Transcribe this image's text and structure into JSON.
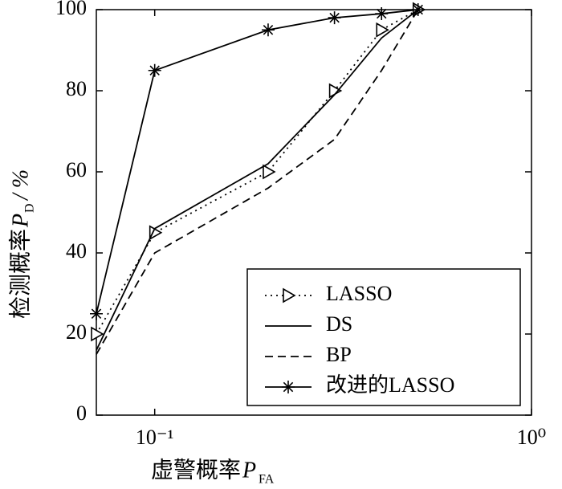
{
  "chart_data": {
    "type": "line",
    "x_label": {
      "text": "虚警概率",
      "var": "P",
      "sub": "FA"
    },
    "y_label": {
      "text": "检测概率",
      "var": "P",
      "sub": "D",
      "unit": "/ %"
    },
    "x": [
      0.07,
      0.1,
      0.2,
      0.3,
      0.4,
      0.5
    ],
    "x_scale": "log",
    "xlim": [
      0.07,
      1
    ],
    "xticks": [
      {
        "value": 0.1,
        "label": "10⁻¹"
      },
      {
        "value": 1,
        "label": "10⁰"
      }
    ],
    "ylim": [
      0,
      100
    ],
    "yticks": [
      0,
      20,
      40,
      60,
      80,
      100
    ],
    "grid": false,
    "legend": "lower right",
    "series": [
      {
        "name": "LASSO",
        "color": "#000000",
        "dash": "dotted",
        "marker": "triangle-right",
        "values": [
          20,
          45,
          60,
          80,
          95,
          100
        ]
      },
      {
        "name": "DS",
        "color": "#000000",
        "dash": "solid",
        "marker": null,
        "values": [
          16,
          46,
          62,
          79,
          93,
          100
        ]
      },
      {
        "name": "BP",
        "color": "#000000",
        "dash": "dashed",
        "marker": null,
        "values": [
          15,
          40,
          56,
          68,
          85,
          100
        ]
      },
      {
        "name": "改进的LASSO",
        "color": "#000000",
        "dash": "solid",
        "marker": "star",
        "values": [
          25,
          85,
          95,
          98,
          99,
          100
        ]
      }
    ]
  }
}
